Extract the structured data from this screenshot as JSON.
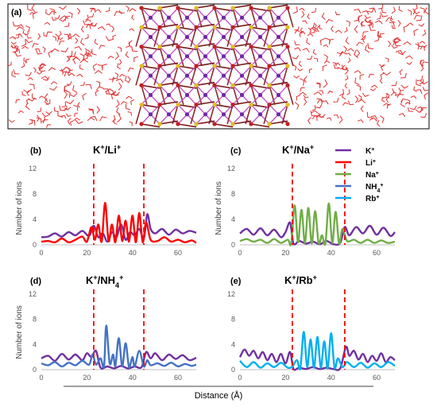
{
  "top_panel": {
    "letter": "(a)"
  },
  "shared_xlabel": "Distance (Å)",
  "legend": [
    {
      "label": "K",
      "sup": "+",
      "sub": "",
      "color": "#7030a0"
    },
    {
      "label": "Li",
      "sup": "+",
      "sub": "",
      "color": "#ff0000"
    },
    {
      "label": "Na",
      "sup": "+",
      "sub": "",
      "color": "#70ad47"
    },
    {
      "label": "NH",
      "sup": "+",
      "sub": "4",
      "color": "#4472c4"
    },
    {
      "label": "Rb",
      "sup": "+",
      "sub": "",
      "color": "#00b0f0"
    }
  ],
  "chart_data": [
    {
      "type": "line",
      "letter": "(b)",
      "title_a": "K",
      "title_b": "/Li",
      "title_sub": "",
      "xlabel": "",
      "ylabel": "Number of ions",
      "xlim": [
        0,
        68
      ],
      "ylim": [
        0,
        12
      ],
      "xticks": [
        0,
        20,
        40,
        60
      ],
      "yticks": [
        0,
        4,
        8,
        12
      ],
      "vlines": [
        23,
        45
      ],
      "series": [
        {
          "name": "K+",
          "color": "#7030a0",
          "points": [
            [
              0,
              1.2
            ],
            [
              3,
              1.3
            ],
            [
              6,
              1.8
            ],
            [
              9,
              1.3
            ],
            [
              12,
              2.0
            ],
            [
              15,
              1.5
            ],
            [
              18,
              2.2
            ],
            [
              21,
              1.4
            ],
            [
              23,
              3.0
            ],
            [
              25,
              1.2
            ],
            [
              27,
              1.8
            ],
            [
              29,
              0.5
            ],
            [
              31,
              2.0
            ],
            [
              33,
              1.2
            ],
            [
              35,
              3.2
            ],
            [
              37,
              0.8
            ],
            [
              39,
              2.0
            ],
            [
              41,
              1.5
            ],
            [
              43,
              2.5
            ],
            [
              45,
              1.0
            ],
            [
              46.5,
              4.8
            ],
            [
              48,
              2.5
            ],
            [
              50,
              1.8
            ],
            [
              53,
              2.5
            ],
            [
              56,
              1.6
            ],
            [
              59,
              2.4
            ],
            [
              62,
              1.8
            ],
            [
              65,
              2.2
            ],
            [
              68,
              1.9
            ]
          ]
        },
        {
          "name": "Li+",
          "color": "#ff0000",
          "points": [
            [
              0,
              0.5
            ],
            [
              3,
              0.6
            ],
            [
              6,
              0.4
            ],
            [
              9,
              1.0
            ],
            [
              12,
              0.4
            ],
            [
              15,
              0.8
            ],
            [
              18,
              1.3
            ],
            [
              20,
              0.5
            ],
            [
              22,
              2.8
            ],
            [
              23.5,
              0.8
            ],
            [
              25,
              3.2
            ],
            [
              26.5,
              0.5
            ],
            [
              28,
              6.6
            ],
            [
              29.5,
              0.6
            ],
            [
              31,
              3.2
            ],
            [
              32.5,
              0.4
            ],
            [
              34,
              4.6
            ],
            [
              35.5,
              0.6
            ],
            [
              37,
              3.8
            ],
            [
              38.5,
              0.5
            ],
            [
              40,
              4.6
            ],
            [
              41.5,
              0.4
            ],
            [
              43,
              5.0
            ],
            [
              44.5,
              0.4
            ],
            [
              46,
              3.5
            ],
            [
              48,
              0.8
            ],
            [
              51,
              0.6
            ],
            [
              54,
              1.2
            ],
            [
              57,
              0.5
            ],
            [
              60,
              0.8
            ],
            [
              63,
              0.4
            ],
            [
              66,
              0.7
            ],
            [
              68,
              0.3
            ]
          ]
        }
      ]
    },
    {
      "type": "line",
      "letter": "(c)",
      "title_a": "K",
      "title_b": "/Na",
      "title_sub": "",
      "xlabel": "",
      "ylabel": "Number of ions",
      "xlim": [
        0,
        68
      ],
      "ylim": [
        0,
        12
      ],
      "xticks": [
        0,
        20,
        40,
        60
      ],
      "yticks": [
        0,
        4,
        8,
        12
      ],
      "vlines": [
        23,
        46
      ],
      "series": [
        {
          "name": "K+",
          "color": "#7030a0",
          "points": [
            [
              0,
              1.8
            ],
            [
              3,
              2.5
            ],
            [
              6,
              1.6
            ],
            [
              9,
              2.6
            ],
            [
              12,
              1.5
            ],
            [
              15,
              2.4
            ],
            [
              18,
              1.2
            ],
            [
              20,
              2.0
            ],
            [
              22,
              3.5
            ],
            [
              23.5,
              0.2
            ],
            [
              26,
              0.6
            ],
            [
              29,
              0.2
            ],
            [
              32,
              0.5
            ],
            [
              35,
              0.1
            ],
            [
              38,
              0.6
            ],
            [
              41,
              0.1
            ],
            [
              44,
              0.3
            ],
            [
              46,
              2.8
            ],
            [
              48,
              1.5
            ],
            [
              51,
              2.8
            ],
            [
              54,
              1.8
            ],
            [
              57,
              3.0
            ],
            [
              60,
              1.6
            ],
            [
              63,
              2.7
            ],
            [
              66,
              1.4
            ],
            [
              68,
              2.0
            ]
          ]
        },
        {
          "name": "Na+",
          "color": "#70ad47",
          "points": [
            [
              0,
              0.6
            ],
            [
              3,
              0.9
            ],
            [
              6,
              0.5
            ],
            [
              9,
              0.8
            ],
            [
              12,
              0.3
            ],
            [
              15,
              0.9
            ],
            [
              18,
              0.3
            ],
            [
              21,
              0.8
            ],
            [
              22.5,
              0.2
            ],
            [
              24,
              6.2
            ],
            [
              25.5,
              0.4
            ],
            [
              27,
              5.5
            ],
            [
              28.5,
              0.3
            ],
            [
              30,
              5.8
            ],
            [
              31.5,
              0.2
            ],
            [
              33,
              5.3
            ],
            [
              34.5,
              0.3
            ],
            [
              36,
              1.5
            ],
            [
              37.5,
              0.2
            ],
            [
              39,
              6.5
            ],
            [
              40.5,
              0.3
            ],
            [
              42,
              5.2
            ],
            [
              43.5,
              0.2
            ],
            [
              45,
              2.5
            ],
            [
              47,
              0.6
            ],
            [
              50,
              0.8
            ],
            [
              53,
              0.3
            ],
            [
              56,
              0.8
            ],
            [
              59,
              0.3
            ],
            [
              62,
              0.7
            ],
            [
              65,
              0.3
            ],
            [
              68,
              0.5
            ]
          ]
        }
      ]
    },
    {
      "type": "line",
      "letter": "(d)",
      "title_a": "K",
      "title_b": "/NH",
      "title_sub": "4",
      "xlabel": "",
      "ylabel": "Number of ions",
      "xlim": [
        0,
        68
      ],
      "ylim": [
        0,
        12
      ],
      "xticks": [
        0,
        20,
        40,
        60
      ],
      "yticks": [
        0,
        4,
        8,
        12
      ],
      "vlines": [
        23,
        45
      ],
      "series": [
        {
          "name": "K+",
          "color": "#7030a0",
          "points": [
            [
              0,
              1.8
            ],
            [
              3,
              2.2
            ],
            [
              6,
              1.4
            ],
            [
              9,
              2.5
            ],
            [
              12,
              1.6
            ],
            [
              15,
              2.4
            ],
            [
              18,
              1.5
            ],
            [
              20,
              2.6
            ],
            [
              22,
              2.0
            ],
            [
              24,
              3.0
            ],
            [
              26,
              0.3
            ],
            [
              29,
              0.5
            ],
            [
              32,
              0.2
            ],
            [
              35,
              0.6
            ],
            [
              38,
              0.2
            ],
            [
              41,
              0.5
            ],
            [
              44,
              0.4
            ],
            [
              46,
              2.8
            ],
            [
              48,
              1.8
            ],
            [
              50,
              2.6
            ],
            [
              53,
              1.5
            ],
            [
              56,
              2.4
            ],
            [
              59,
              1.7
            ],
            [
              62,
              2.3
            ],
            [
              65,
              1.5
            ],
            [
              68,
              1.9
            ]
          ]
        },
        {
          "name": "NH4+",
          "color": "#4472c4",
          "points": [
            [
              0,
              1.0
            ],
            [
              3,
              0.7
            ],
            [
              6,
              1.2
            ],
            [
              9,
              0.5
            ],
            [
              12,
              1.1
            ],
            [
              15,
              0.7
            ],
            [
              18,
              1.4
            ],
            [
              21,
              0.8
            ],
            [
              22.5,
              2.4
            ],
            [
              24,
              0.8
            ],
            [
              26,
              1.8
            ],
            [
              27.5,
              0.5
            ],
            [
              28.5,
              7.0
            ],
            [
              30,
              1.0
            ],
            [
              31.5,
              2.4
            ],
            [
              32.5,
              0.6
            ],
            [
              34,
              5.0
            ],
            [
              35.5,
              0.5
            ],
            [
              37,
              4.2
            ],
            [
              38.5,
              0.4
            ],
            [
              40,
              2.0
            ],
            [
              41,
              0.5
            ],
            [
              43,
              3.0
            ],
            [
              45,
              0.5
            ],
            [
              46.5,
              1.5
            ],
            [
              48,
              0.7
            ],
            [
              51,
              1.0
            ],
            [
              54,
              0.6
            ],
            [
              57,
              1.1
            ],
            [
              60,
              0.5
            ],
            [
              63,
              0.9
            ],
            [
              66,
              0.6
            ],
            [
              68,
              0.8
            ]
          ]
        }
      ]
    },
    {
      "type": "line",
      "letter": "(e)",
      "title_a": "K",
      "title_b": "/Rb",
      "title_sub": "",
      "xlabel": "",
      "ylabel": "",
      "xlim": [
        0,
        68
      ],
      "ylim": [
        0,
        12
      ],
      "xticks": [
        0,
        20,
        40,
        60
      ],
      "yticks": [
        0,
        4,
        8,
        12
      ],
      "vlines": [
        23,
        46
      ],
      "series": [
        {
          "name": "K+",
          "color": "#7030a0",
          "points": [
            [
              0,
              2.0
            ],
            [
              2,
              3.2
            ],
            [
              4,
              2.2
            ],
            [
              6,
              3.0
            ],
            [
              8,
              1.8
            ],
            [
              10,
              2.8
            ],
            [
              12,
              1.5
            ],
            [
              14,
              2.5
            ],
            [
              16,
              1.2
            ],
            [
              18,
              2.5
            ],
            [
              20,
              1.0
            ],
            [
              22,
              2.8
            ],
            [
              23.5,
              0.1
            ],
            [
              26,
              0.3
            ],
            [
              29,
              0.1
            ],
            [
              32,
              0.4
            ],
            [
              35,
              0.1
            ],
            [
              38,
              0.3
            ],
            [
              41,
              0.1
            ],
            [
              44,
              0.2
            ],
            [
              46.5,
              3.6
            ],
            [
              48,
              2.2
            ],
            [
              50,
              3.0
            ],
            [
              52,
              1.6
            ],
            [
              54,
              2.5
            ],
            [
              56,
              1.2
            ],
            [
              58,
              2.2
            ],
            [
              60,
              1.4
            ],
            [
              62,
              2.6
            ],
            [
              64,
              1.2
            ],
            [
              66,
              2.0
            ],
            [
              68,
              1.5
            ]
          ]
        },
        {
          "name": "Rb+",
          "color": "#00b0f0",
          "points": [
            [
              0,
              1.4
            ],
            [
              3,
              0.4
            ],
            [
              6,
              1.2
            ],
            [
              9,
              0.3
            ],
            [
              12,
              1.0
            ],
            [
              15,
              0.4
            ],
            [
              18,
              1.1
            ],
            [
              21,
              0.3
            ],
            [
              23,
              0.5
            ],
            [
              25,
              1.5
            ],
            [
              26.5,
              0.2
            ],
            [
              28,
              6.0
            ],
            [
              29.5,
              0.4
            ],
            [
              31,
              4.8
            ],
            [
              32.5,
              0.3
            ],
            [
              34,
              5.2
            ],
            [
              35.5,
              0.3
            ],
            [
              37,
              4.5
            ],
            [
              38.5,
              0.2
            ],
            [
              40,
              5.8
            ],
            [
              41.5,
              0.3
            ],
            [
              43,
              1.8
            ],
            [
              45,
              0.4
            ],
            [
              47,
              1.2
            ],
            [
              50,
              0.4
            ],
            [
              53,
              1.1
            ],
            [
              56,
              0.3
            ],
            [
              59,
              1.0
            ],
            [
              62,
              0.4
            ],
            [
              65,
              1.2
            ],
            [
              68,
              0.6
            ]
          ]
        }
      ]
    }
  ]
}
